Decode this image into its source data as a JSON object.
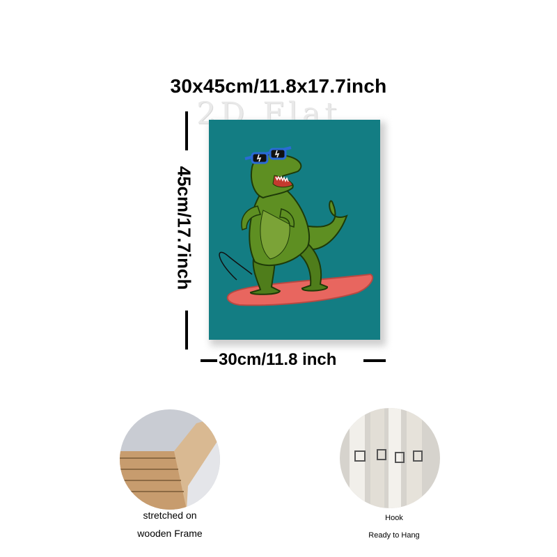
{
  "dimensions": {
    "overall": "30x45cm/11.8x17.7inch",
    "height": "45cm/17.7inch",
    "width": "30cm/11.8 inch"
  },
  "watermark": "2D Flat",
  "artwork": {
    "background_color": "#137d83",
    "subject": "t-rex-surfing-with-sunglasses",
    "surfboard_color": "#e8665f",
    "dino_color": "#5e8f22"
  },
  "features": [
    {
      "caption_line1": "stretched on",
      "caption_line2": "wooden Frame"
    },
    {
      "caption_line1": "Hook",
      "caption_line2": "Ready to Hang"
    }
  ]
}
